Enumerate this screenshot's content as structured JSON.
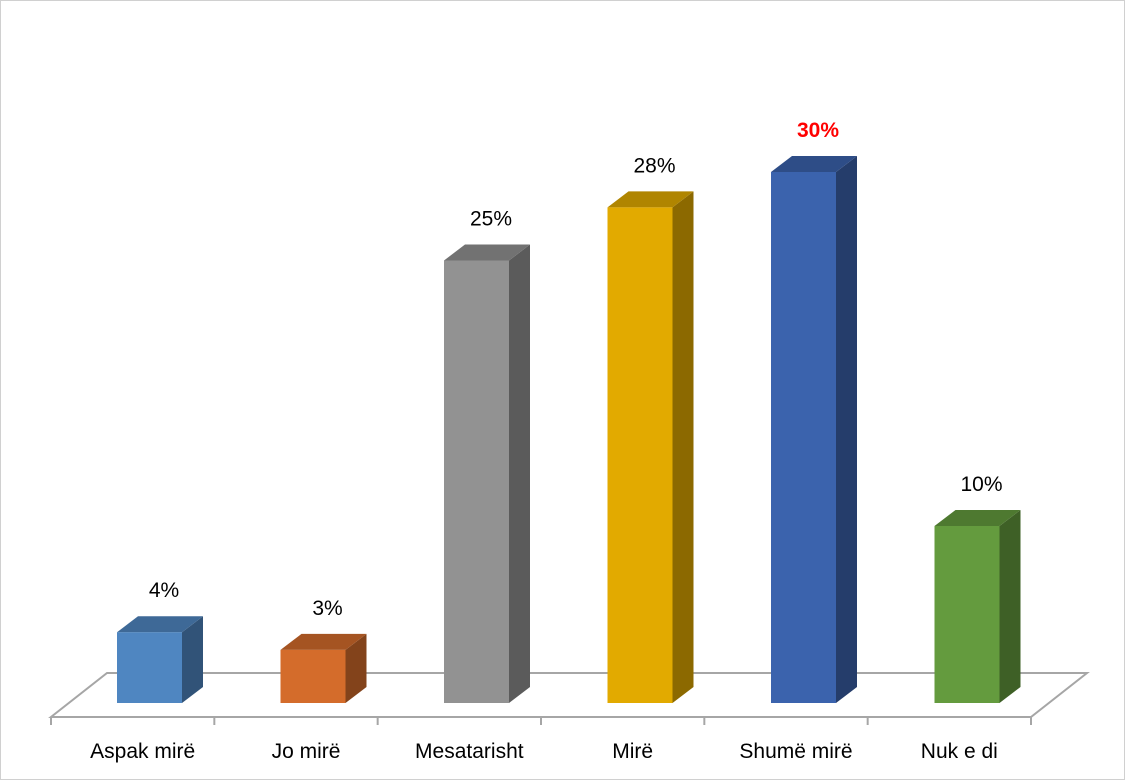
{
  "chart_data": {
    "type": "bar",
    "style": "3d-column",
    "categories": [
      "Aspak mirë",
      "Jo mirë",
      "Mesatarisht",
      "Mirë",
      "Shumë mirë",
      "Nuk e di"
    ],
    "values": [
      4,
      3,
      25,
      28,
      30,
      10
    ],
    "data_labels": [
      "4%",
      "3%",
      "25%",
      "28%",
      "30%",
      "10%"
    ],
    "unit": "%",
    "highlighted_label_index": 4,
    "title": "",
    "xlabel": "",
    "ylabel": "",
    "ylim": [
      0,
      30
    ],
    "grid": false,
    "legend": "none",
    "colors": {
      "bars": [
        "#4f86c1",
        "#d46c2b",
        "#929292",
        "#e2aa00",
        "#3b63ad",
        "#649b3e"
      ],
      "highlight_label": "#ff0000",
      "label": "#000000",
      "floor_line": "#a6a6a6"
    }
  }
}
